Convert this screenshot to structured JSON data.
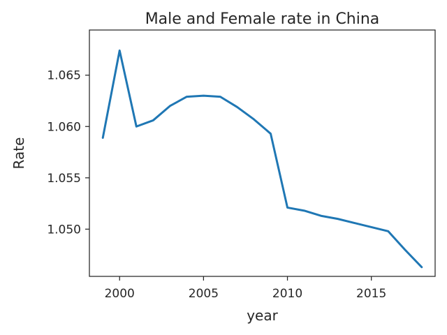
{
  "chart_data": {
    "type": "line",
    "title": "Male and Female rate in China",
    "xlabel": "year",
    "ylabel": "Rate",
    "xlim": [
      1998.2,
      2018.8
    ],
    "ylim": [
      1.0454,
      1.0694
    ],
    "xticks": [
      2000,
      2005,
      2010,
      2015
    ],
    "yticks": [
      1.05,
      1.055,
      1.06,
      1.065
    ],
    "xtick_labels": [
      "2000",
      "2005",
      "2010",
      "2015"
    ],
    "ytick_labels": [
      "1.050",
      "1.055",
      "1.060",
      "1.065"
    ],
    "grid": false,
    "series": [
      {
        "color": "#1f77b4",
        "x": [
          1999,
          2000,
          2001,
          2002,
          2003,
          2004,
          2005,
          2006,
          2007,
          2008,
          2009,
          2010,
          2011,
          2012,
          2013,
          2014,
          2015,
          2016,
          2017,
          2018
        ],
        "y": [
          1.0589,
          1.0674,
          1.06,
          1.0606,
          1.062,
          1.0629,
          1.063,
          1.0629,
          1.0619,
          1.0607,
          1.0593,
          1.0521,
          1.0518,
          1.0513,
          1.051,
          1.0506,
          1.0502,
          1.0498,
          1.048,
          1.0463
        ]
      }
    ]
  }
}
